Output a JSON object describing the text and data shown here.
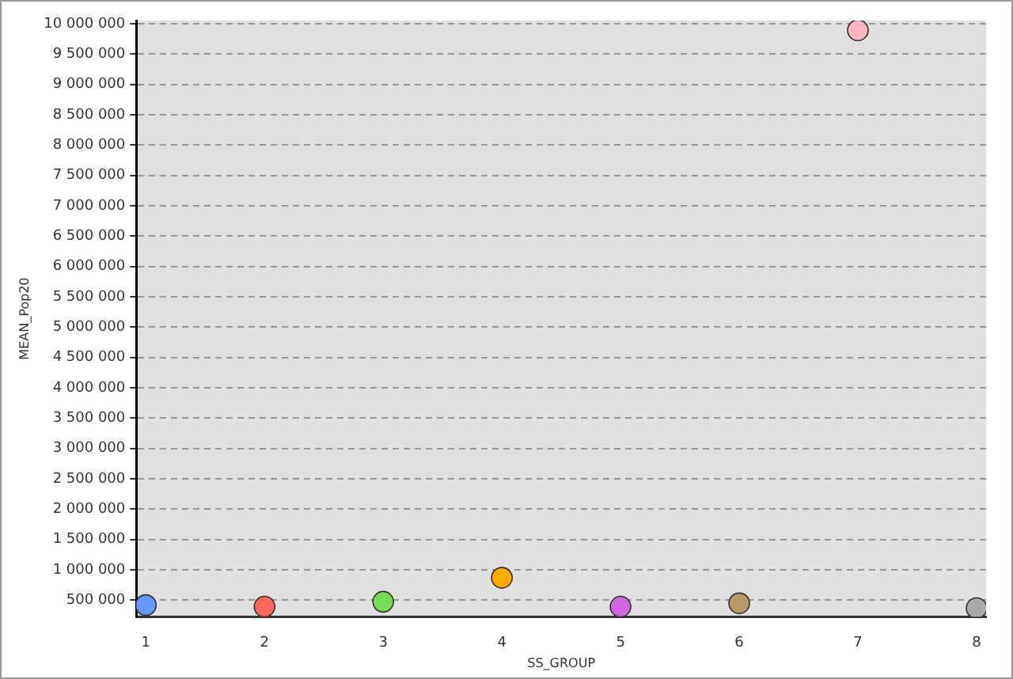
{
  "chart_data": {
    "type": "scatter",
    "xlabel": "SS_GROUP",
    "ylabel": "MEAN_Pop20",
    "x": [
      1,
      2,
      3,
      4,
      5,
      6,
      7,
      8
    ],
    "values": [
      420000,
      395000,
      475000,
      870000,
      395000,
      450000,
      9890000,
      370000
    ],
    "colors": [
      "#6699ff",
      "#ff6655",
      "#77dd55",
      "#ffaa00",
      "#cc66dd",
      "#b89a6a",
      "#ffb6c1",
      "#aaaaaa"
    ],
    "xlim": [
      0.92,
      8.08
    ],
    "xticks": [
      1,
      2,
      3,
      4,
      5,
      6,
      7,
      8
    ],
    "ylim": [
      230000,
      10050000
    ],
    "yticks": [
      {
        "value": 500000,
        "label": "500 000"
      },
      {
        "value": 1000000,
        "label": "1 000 000"
      },
      {
        "value": 1500000,
        "label": "1 500 000"
      },
      {
        "value": 2000000,
        "label": "2 000 000"
      },
      {
        "value": 2500000,
        "label": "2 500 000"
      },
      {
        "value": 3000000,
        "label": "3 000 000"
      },
      {
        "value": 3500000,
        "label": "3 500 000"
      },
      {
        "value": 4000000,
        "label": "4 000 000"
      },
      {
        "value": 4500000,
        "label": "4 500 000"
      },
      {
        "value": 5000000,
        "label": "5 000 000"
      },
      {
        "value": 5500000,
        "label": "5 500 000"
      },
      {
        "value": 6000000,
        "label": "6 000 000"
      },
      {
        "value": 6500000,
        "label": "6 500 000"
      },
      {
        "value": 7000000,
        "label": "7 000 000"
      },
      {
        "value": 7500000,
        "label": "7 500 000"
      },
      {
        "value": 8000000,
        "label": "8 000 000"
      },
      {
        "value": 8500000,
        "label": "8 500 000"
      },
      {
        "value": 9000000,
        "label": "9 000 000"
      },
      {
        "value": 9500000,
        "label": "9 500 000"
      },
      {
        "value": 10000000,
        "label": "10 000 000"
      }
    ],
    "grid": "y",
    "legend": false,
    "marker": "circle"
  }
}
